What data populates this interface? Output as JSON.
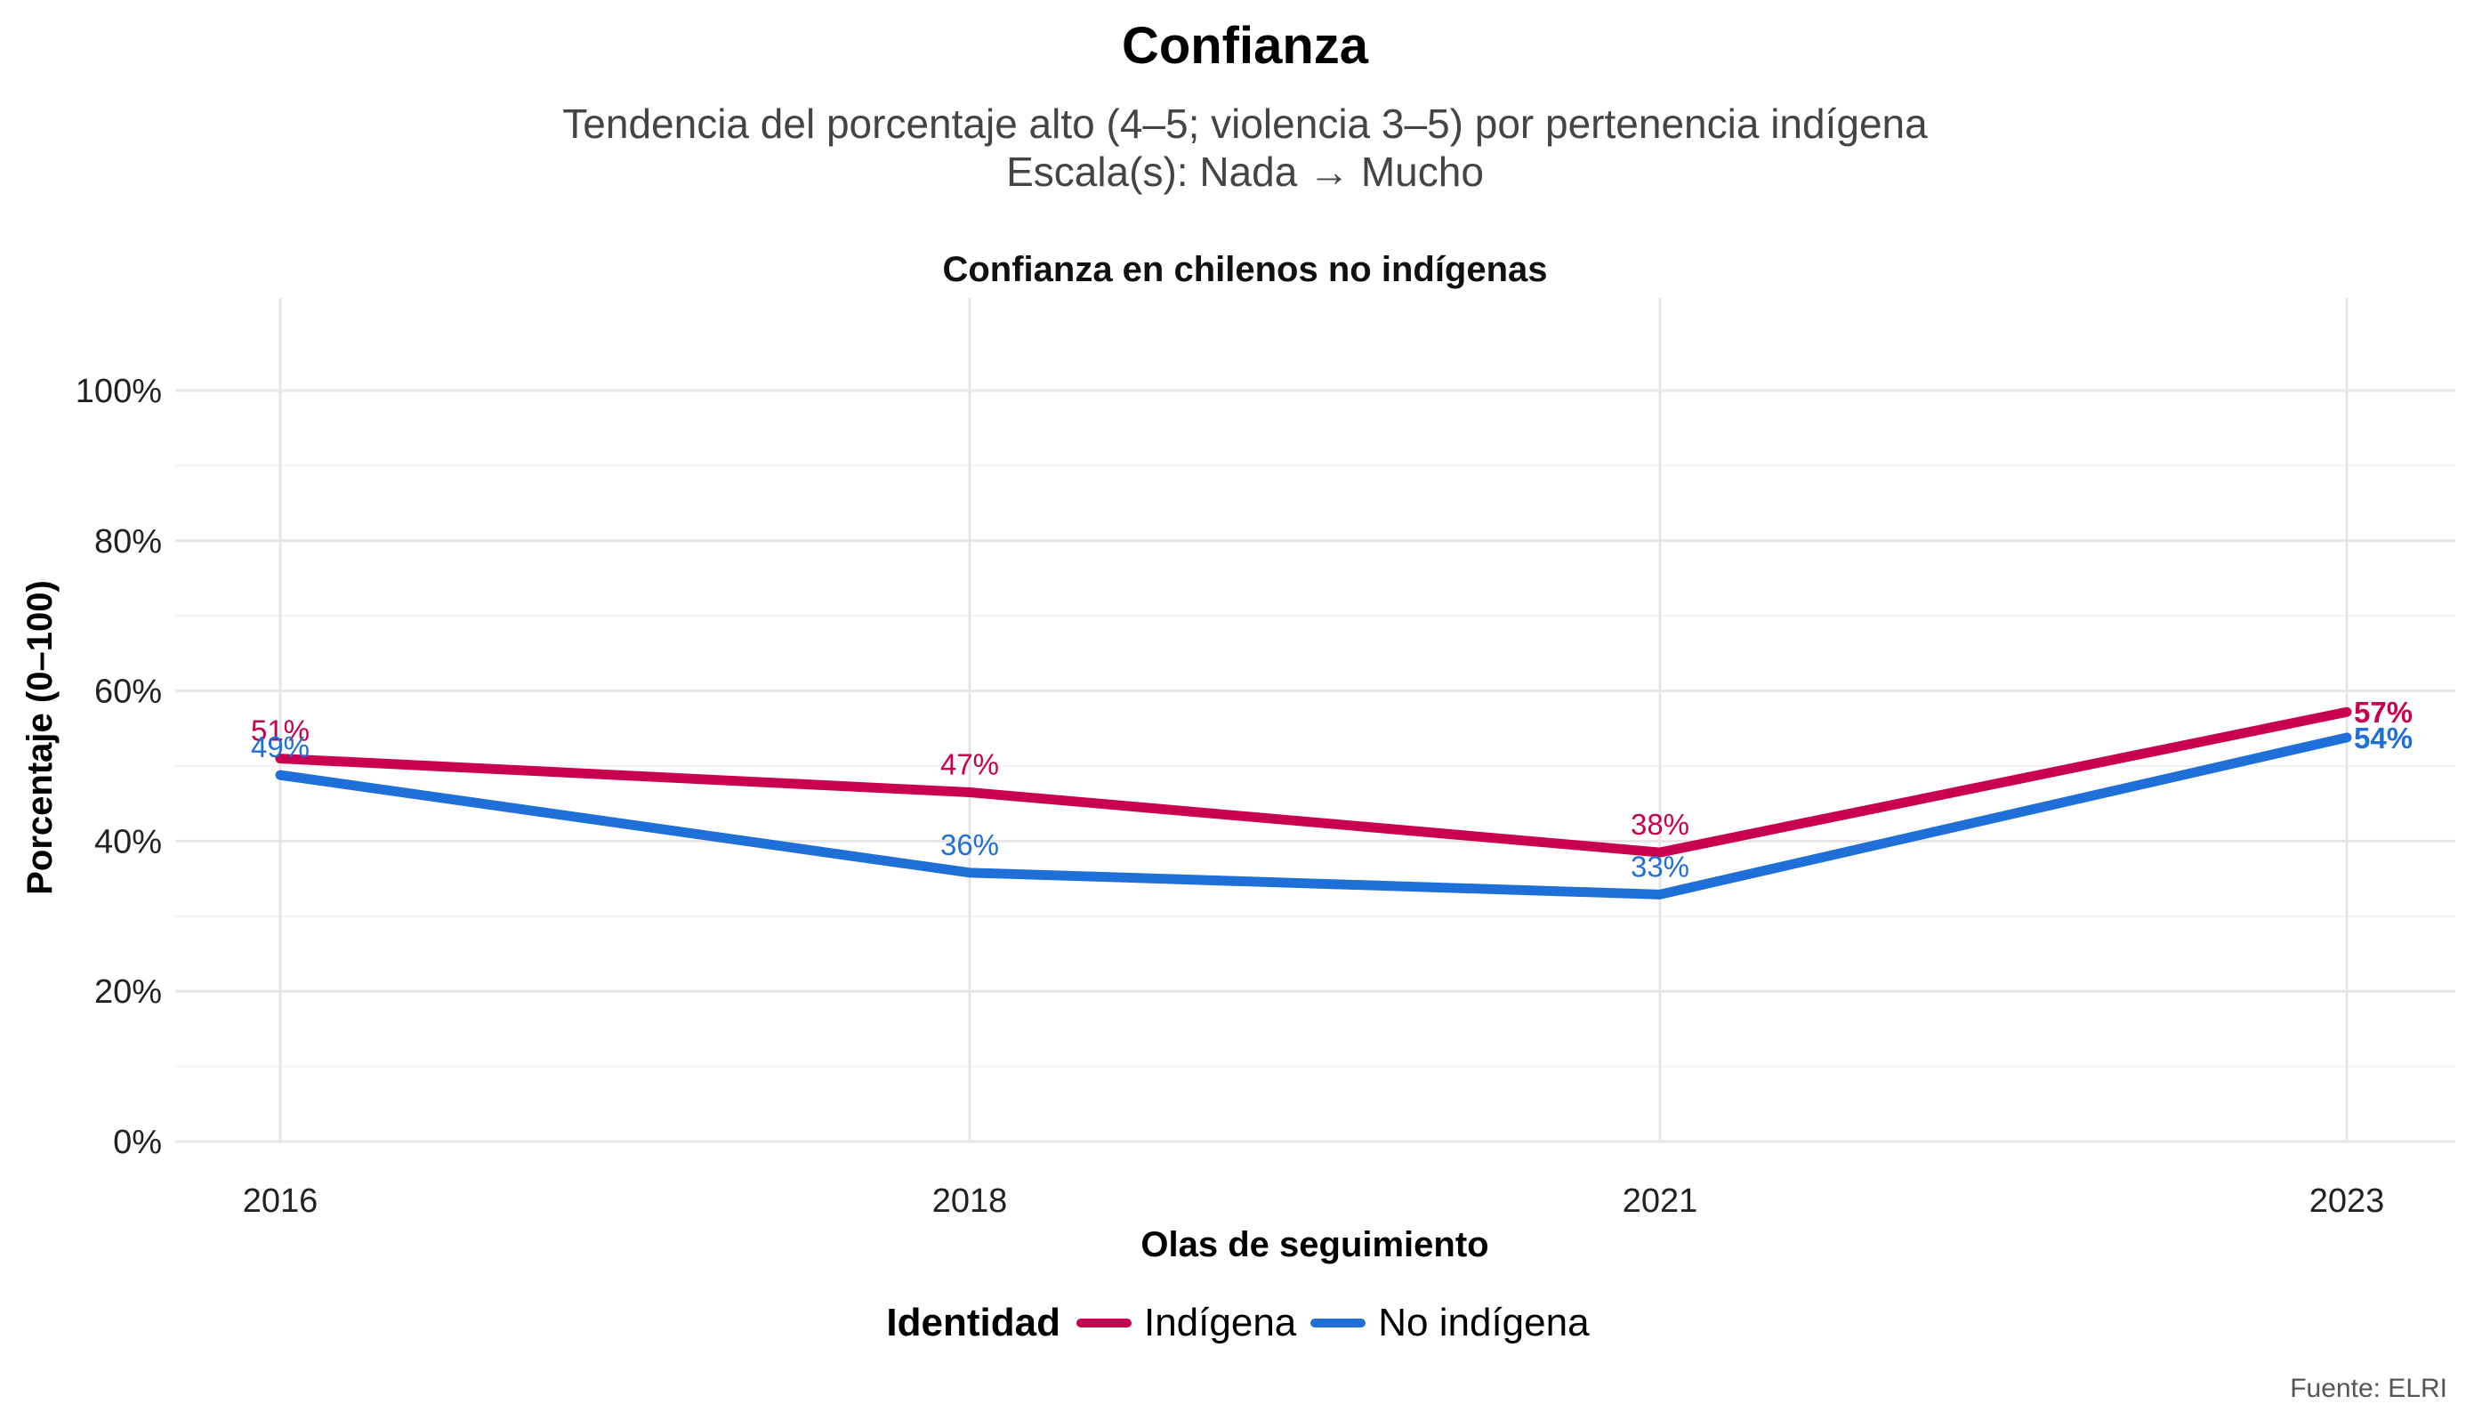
{
  "title": "Confianza",
  "subtitle_line1": "Tendencia del porcentaje alto (4–5; violencia 3–5) por pertenencia indígena",
  "subtitle_line2": "Escala(s): Nada → Mucho",
  "caption": "Fuente: ELRI",
  "legend": {
    "title": "Identidad",
    "items": [
      {
        "label": "Indígena",
        "color": "#C8004F"
      },
      {
        "label": "No indígena",
        "color": "#1F6FD8"
      }
    ]
  },
  "chart_data": {
    "type": "line",
    "title": "Confianza",
    "panel_title": "Confianza en chilenos no indígenas",
    "xlabel": "Olas de seguimiento",
    "ylabel": "Porcentaje (0–100)",
    "x": [
      "2016",
      "2018",
      "2021",
      "2023"
    ],
    "ylim": [
      0,
      100
    ],
    "yticks": [
      0,
      20,
      40,
      60,
      80,
      100
    ],
    "ytick_labels": [
      "0%",
      "20%",
      "40%",
      "60%",
      "80%",
      "100%"
    ],
    "grid": true,
    "legend_position": "bottom",
    "series": [
      {
        "name": "Indígena",
        "color": "#C8004F",
        "values": [
          51,
          46.5,
          38.5,
          57.2
        ],
        "labels": [
          "51%",
          "47%",
          "38%",
          "57%"
        ]
      },
      {
        "name": "No indígena",
        "color": "#1F6FD8",
        "values": [
          48.8,
          35.8,
          32.9,
          53.8
        ],
        "labels": [
          "49%",
          "36%",
          "33%",
          "54%"
        ]
      }
    ]
  }
}
